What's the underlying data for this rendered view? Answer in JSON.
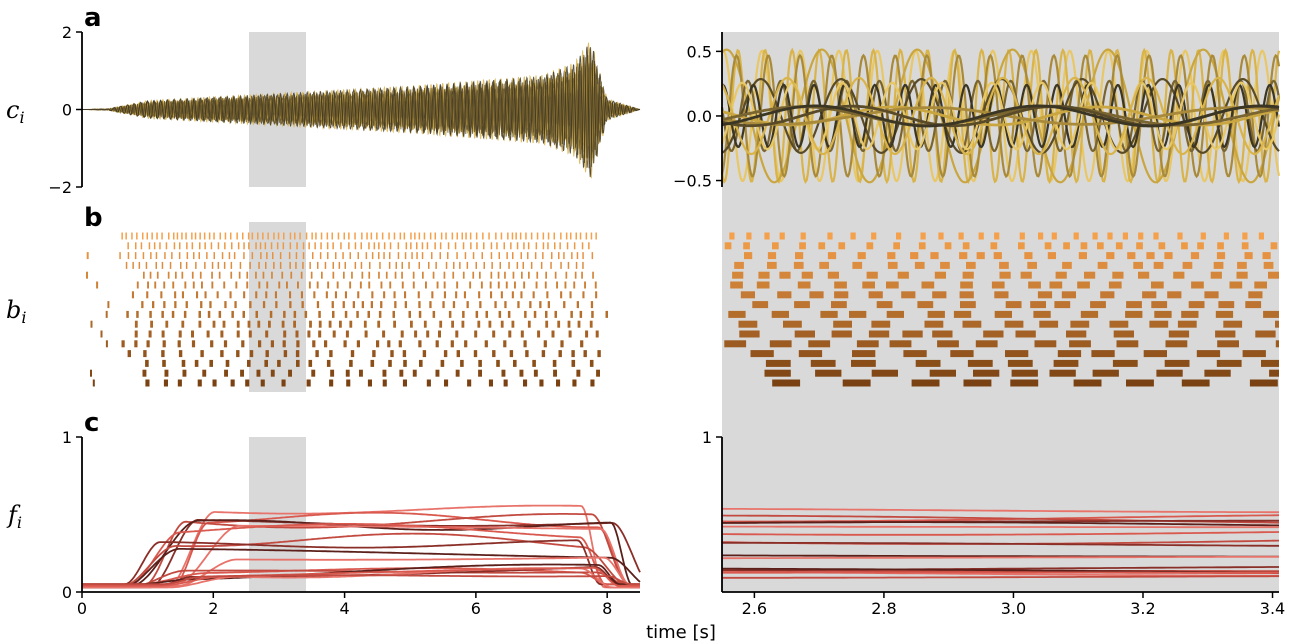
{
  "chart_data": [
    {
      "id": "a-left",
      "panel_label": "a",
      "type": "line",
      "ylabel": "c",
      "ylabel_sub": "i",
      "xlim": [
        0,
        8.5
      ],
      "ylim": [
        -2,
        2
      ],
      "yticks": [
        -2,
        0,
        2
      ],
      "ytick_labels": [
        "−2",
        "0",
        "2"
      ],
      "grid": false,
      "description_series": "oscillating traces c_i, envelope growing from ~0.3 at t=1 to ~2 near t=7.7, silent before 0.4 s and after 8.1 s",
      "envelope": {
        "x": [
          0,
          0.4,
          1,
          2,
          3,
          4,
          5,
          6,
          7,
          7.5,
          7.75,
          8.0,
          8.5
        ],
        "y": [
          0,
          0.02,
          0.25,
          0.35,
          0.45,
          0.55,
          0.65,
          0.8,
          0.95,
          1.3,
          1.95,
          0.3,
          0
        ]
      },
      "highlight": [
        2.55,
        3.41
      ]
    },
    {
      "id": "a-right",
      "type": "line",
      "xlim": [
        2.55,
        3.41
      ],
      "ylim": [
        -0.55,
        0.65
      ],
      "yticks": [
        -0.5,
        0.0,
        0.5
      ],
      "ytick_labels": [
        "−0.5",
        "0.0",
        "0.5"
      ],
      "grid": false,
      "background": "#d9d9d9",
      "description_series": "zoom of c_i traces in highlighted window, amplitudes up to ~0.6"
    },
    {
      "id": "b-left",
      "panel_label": "b",
      "type": "raster",
      "ylabel": "b",
      "ylabel_sub": "i",
      "xlim": [
        0,
        8.5
      ],
      "rows": 16,
      "description_series": "binary state raster b_i, 16 rows, upper rows light orange with short frequent bursts, lower rows dark brown with longer bursts"
    },
    {
      "id": "b-right",
      "type": "raster",
      "xlim": [
        2.55,
        3.41
      ],
      "rows": 16,
      "background": "#d9d9d9"
    },
    {
      "id": "c-left",
      "panel_label": "c",
      "type": "line",
      "ylabel": "f",
      "ylabel_sub": "i",
      "xlim": [
        0,
        8.5
      ],
      "ylim": [
        0,
        1
      ],
      "xticks": [
        0,
        2,
        4,
        6,
        8
      ],
      "xtick_labels": [
        "0",
        "2",
        "4",
        "6",
        "8"
      ],
      "yticks": [
        0,
        1
      ],
      "ytick_labels": [
        "0",
        "1"
      ],
      "grid": false,
      "series_levels": [
        0.52,
        0.49,
        0.47,
        0.45,
        0.44,
        0.43,
        0.4,
        0.35,
        0.3,
        0.25,
        0.22,
        0.15,
        0.14,
        0.13,
        0.12,
        0.11,
        0.1,
        0.09
      ],
      "rise_window": [
        0.5,
        1.5
      ],
      "fall_window": [
        7.6,
        8.5
      ],
      "highlight": [
        2.55,
        3.41
      ]
    },
    {
      "id": "c-right",
      "type": "line",
      "xlim": [
        2.55,
        3.41
      ],
      "ylim": [
        0,
        1
      ],
      "xticks": [
        2.6,
        2.8,
        3.0,
        3.2,
        3.4
      ],
      "xtick_labels": [
        "2.6",
        "2.8",
        "3.0",
        "3.2",
        "3.4"
      ],
      "yticks": [
        1
      ],
      "ytick_labels": [
        "1"
      ],
      "grid": false,
      "background": "#d9d9d9"
    }
  ],
  "xlabel": "time [s]",
  "colors": {
    "c_palette": [
      "#e8c766",
      "#d9b44a",
      "#c9a640",
      "#a88a3a",
      "#7a6530",
      "#5a4b28",
      "#3b3524"
    ],
    "b_palette_top": "#f5a04a",
    "b_palette_bottom": "#7a4212",
    "f_palette": [
      "#e8736a",
      "#d9594f",
      "#c24a40",
      "#8a2f28",
      "#5c201b"
    ],
    "highlight": "#d9d9d9"
  }
}
